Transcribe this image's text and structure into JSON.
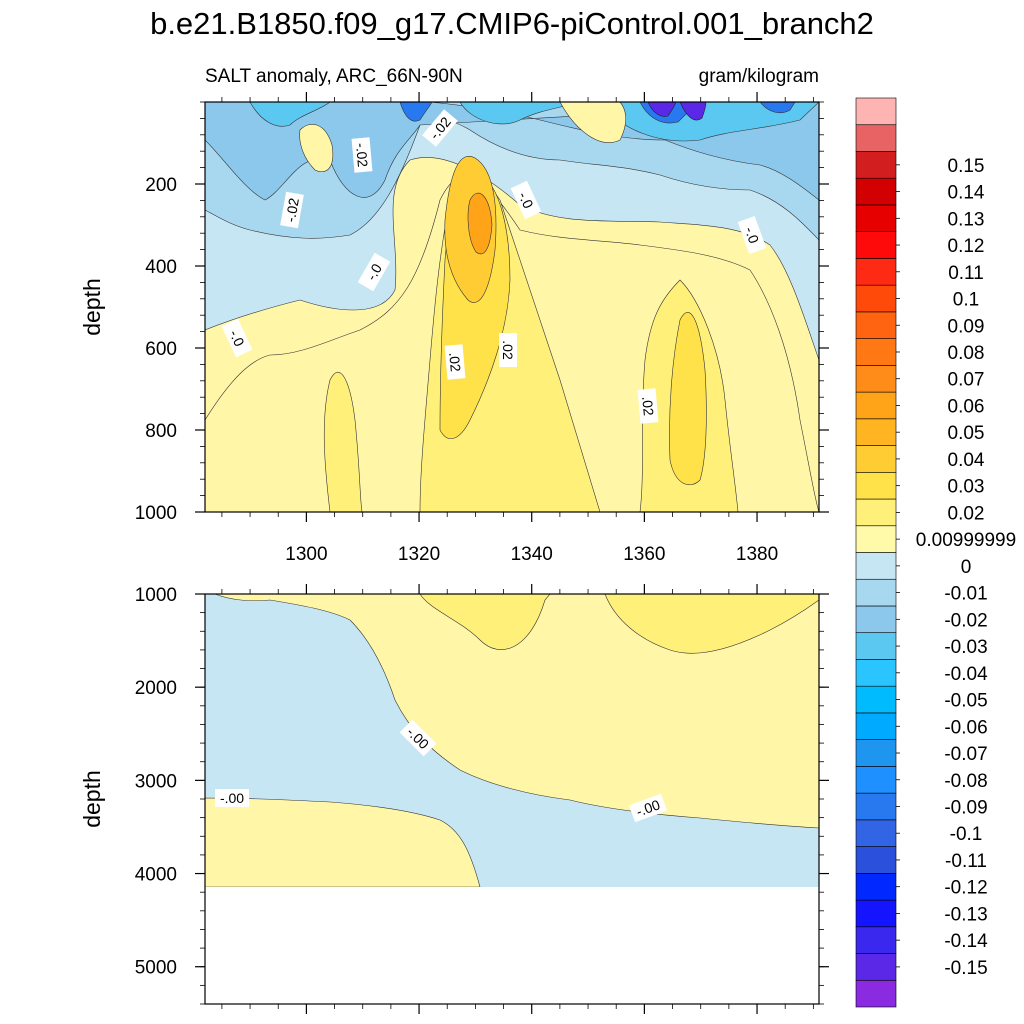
{
  "chart_data": {
    "type": "heatmap",
    "title": "b.e21.B1850.f09_g17.CMIP6-piControl.001_branch2",
    "subtitle_left": "SALT anomaly, ARC_66N-90N",
    "subtitle_right": "gram/kilogram",
    "ylabel": "depth",
    "xlim": [
      1282,
      1391
    ],
    "top_panel": {
      "ylim": [
        0,
        1000
      ],
      "yticks": [
        "200",
        "400",
        "600",
        "800",
        "1000"
      ],
      "xticks": [
        "1300",
        "1320",
        "1340",
        "1360",
        "1380"
      ],
      "contour_labels": [
        "-.02",
        "-.02",
        "-.02",
        "-.0",
        "-.0",
        "-.0",
        "-.0",
        ".02",
        ".02",
        ".02"
      ]
    },
    "bottom_panel": {
      "ylim": [
        1000,
        5400
      ],
      "yticks": [
        "1000",
        "2000",
        "3000",
        "4000",
        "5000"
      ],
      "contour_labels": [
        "-.00",
        "-.00",
        "-.00"
      ]
    },
    "colorbar": {
      "colors": [
        "#8a2be2",
        "#5a28e6",
        "#3a28ef",
        "#1414ff",
        "#0028ff",
        "#2a50dc",
        "#3264e6",
        "#2878f0",
        "#1e90ff",
        "#1e96f0",
        "#00aaff",
        "#00bcff",
        "#2ac4ff",
        "#5ac8f0",
        "#8cc8ec",
        "#a8d8f0",
        "#c6e6f4",
        "#fffaaa",
        "#fff07a",
        "#ffe14a",
        "#ffcc33",
        "#ffb521",
        "#ffa319",
        "#ff8c19",
        "#ff7814",
        "#ff6410",
        "#ff4a0a",
        "#ff2a14",
        "#ff0a0a",
        "#e60000",
        "#d20000",
        "#d21e1e",
        "#e86464",
        "#ffb4b4"
      ],
      "labels": [
        "-0.15",
        "-0.14",
        "-0.13",
        "-0.12",
        "-0.11",
        "-0.1",
        "-0.09",
        "-0.08",
        "-0.07",
        "-0.06",
        "-0.05",
        "-0.04",
        "-0.03",
        "-0.02",
        "-0.01",
        "0",
        "0.00999999",
        "0.02",
        "0.03",
        "0.04",
        "0.05",
        "0.06",
        "0.07",
        "0.08",
        "0.09",
        "0.1",
        "0.11",
        "0.12",
        "0.13",
        "0.14",
        "0.15"
      ]
    }
  }
}
